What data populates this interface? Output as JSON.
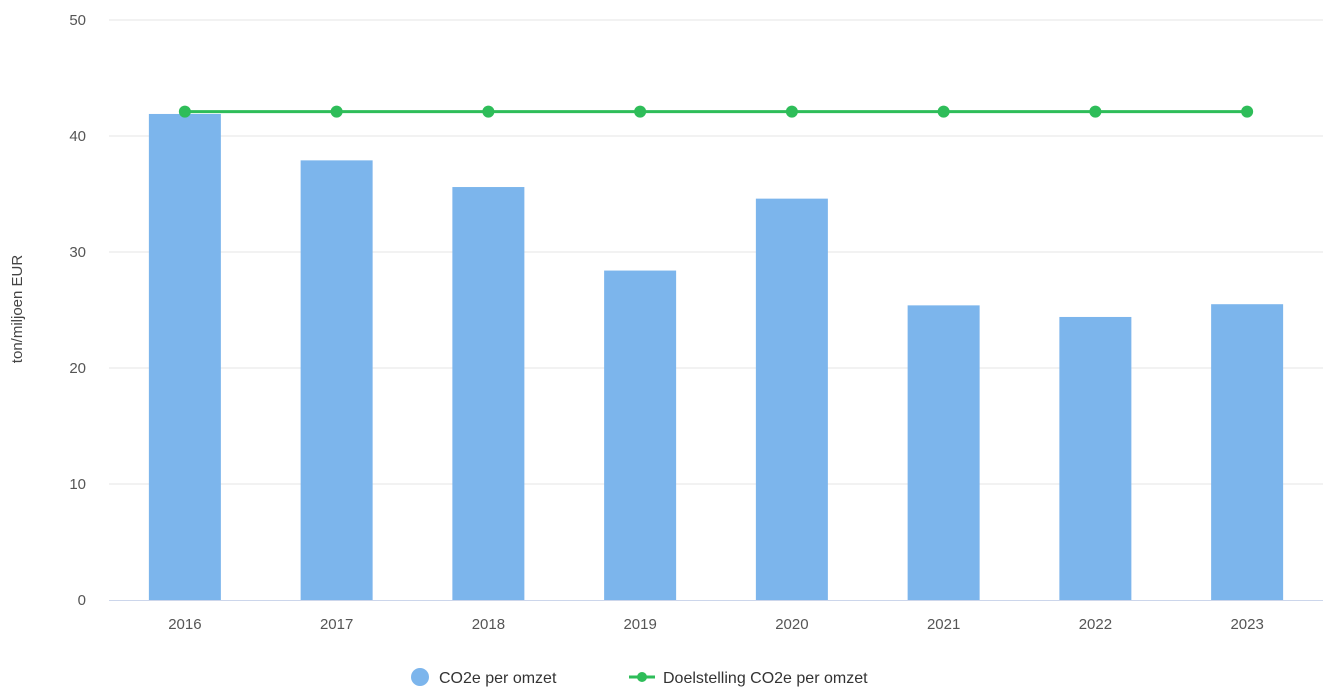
{
  "chart_data": {
    "type": "bar",
    "categories": [
      "2016",
      "2017",
      "2018",
      "2019",
      "2020",
      "2021",
      "2022",
      "2023"
    ],
    "series": [
      {
        "name": "CO2e per omzet",
        "kind": "bar",
        "color": "#7cb5ec",
        "values": [
          41.9,
          37.9,
          35.6,
          28.4,
          34.6,
          25.4,
          24.4,
          25.5
        ]
      },
      {
        "name": "Doelstelling CO2e per omzet",
        "kind": "line",
        "color": "#2ebd59",
        "values": [
          42.1,
          42.1,
          42.1,
          42.1,
          42.1,
          42.1,
          42.1,
          42.1
        ]
      }
    ],
    "title": "",
    "xlabel": "",
    "ylabel": "ton/miljoen EUR",
    "ylim": [
      0,
      50
    ],
    "yticks": [
      "0",
      "10",
      "20",
      "30",
      "40",
      "50"
    ],
    "grid": true,
    "legend_position": "bottom-center"
  }
}
